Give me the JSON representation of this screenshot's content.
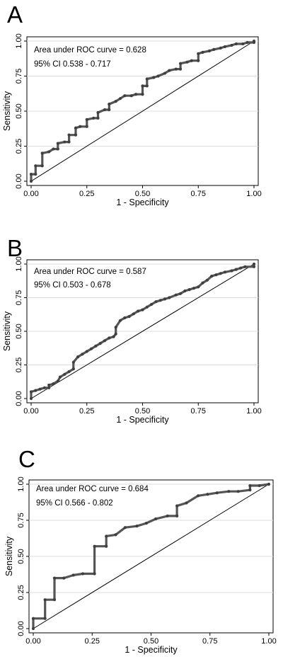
{
  "colors": {
    "grid": "#dedede",
    "axis": "#000000",
    "curve": "#555555",
    "marker": "#3f3f3f",
    "reference": "#000000"
  },
  "chart_data": [
    {
      "panel": "A",
      "type": "line",
      "xlabel": "1 - Specificity",
      "ylabel": "Sensitivity",
      "xlim": [
        0,
        1
      ],
      "ylim": [
        0,
        1
      ],
      "xticks": [
        "0.00",
        "0.25",
        "0.50",
        "0.75",
        "1.00"
      ],
      "yticks": [
        "0.00",
        "0.25",
        "0.50",
        "0.75",
        "1.00"
      ],
      "grid": true,
      "annotations": [
        "Area under ROC curve = 0.628",
        "95% CI  0.538 - 0.717"
      ],
      "reference_line": [
        [
          0,
          0
        ],
        [
          1,
          1
        ]
      ],
      "series": [
        {
          "x": [
            0,
            0,
            0.02,
            0.02,
            0.05,
            0.05,
            0.08,
            0.1,
            0.12,
            0.12,
            0.15,
            0.17,
            0.17,
            0.2,
            0.2,
            0.22,
            0.25,
            0.25,
            0.28,
            0.3,
            0.3,
            0.33,
            0.35,
            0.35,
            0.38,
            0.4,
            0.42,
            0.45,
            0.47,
            0.5,
            0.5,
            0.52,
            0.52,
            0.55,
            0.57,
            0.6,
            0.62,
            0.65,
            0.67,
            0.67,
            0.7,
            0.72,
            0.75,
            0.75,
            0.77,
            0.8,
            0.82,
            0.85,
            0.87,
            0.9,
            0.92,
            0.95,
            0.97,
            1.0,
            1.0
          ],
          "y": [
            0,
            0.05,
            0.05,
            0.11,
            0.11,
            0.2,
            0.21,
            0.23,
            0.23,
            0.27,
            0.28,
            0.28,
            0.33,
            0.33,
            0.38,
            0.39,
            0.39,
            0.44,
            0.45,
            0.45,
            0.49,
            0.51,
            0.51,
            0.55,
            0.57,
            0.59,
            0.61,
            0.61,
            0.62,
            0.62,
            0.68,
            0.68,
            0.73,
            0.74,
            0.75,
            0.77,
            0.79,
            0.8,
            0.8,
            0.84,
            0.85,
            0.86,
            0.86,
            0.91,
            0.92,
            0.93,
            0.94,
            0.95,
            0.96,
            0.97,
            0.98,
            0.98,
            0.99,
            0.99,
            1.0
          ]
        }
      ]
    },
    {
      "panel": "B",
      "type": "line",
      "xlabel": "1 - Specificity",
      "ylabel": "Sensitivity",
      "xlim": [
        0,
        1
      ],
      "ylim": [
        0,
        1
      ],
      "xticks": [
        "0.00",
        "0.25",
        "0.50",
        "0.75",
        "1.00"
      ],
      "yticks": [
        "0.00",
        "0.25",
        "0.50",
        "0.75",
        "1.00"
      ],
      "grid": true,
      "annotations": [
        "Area under ROC curve = 0.587",
        "95% CI  0.503 - 0.678"
      ],
      "reference_line": [
        [
          0,
          0
        ],
        [
          1,
          1
        ]
      ],
      "series": [
        {
          "x": [
            0,
            0,
            0.02,
            0.04,
            0.06,
            0.08,
            0.08,
            0.1,
            0.12,
            0.13,
            0.15,
            0.17,
            0.19,
            0.19,
            0.21,
            0.23,
            0.25,
            0.27,
            0.29,
            0.31,
            0.33,
            0.35,
            0.37,
            0.38,
            0.38,
            0.4,
            0.42,
            0.44,
            0.46,
            0.48,
            0.5,
            0.52,
            0.54,
            0.56,
            0.58,
            0.6,
            0.62,
            0.65,
            0.67,
            0.69,
            0.71,
            0.73,
            0.75,
            0.77,
            0.79,
            0.81,
            0.83,
            0.85,
            0.87,
            0.9,
            0.92,
            0.94,
            0.96,
            1.0,
            1.0
          ],
          "y": [
            0,
            0.05,
            0.06,
            0.07,
            0.08,
            0.08,
            0.1,
            0.11,
            0.13,
            0.16,
            0.18,
            0.2,
            0.22,
            0.27,
            0.31,
            0.33,
            0.35,
            0.37,
            0.39,
            0.41,
            0.43,
            0.45,
            0.46,
            0.48,
            0.53,
            0.58,
            0.6,
            0.61,
            0.63,
            0.65,
            0.66,
            0.68,
            0.7,
            0.72,
            0.73,
            0.74,
            0.75,
            0.77,
            0.78,
            0.8,
            0.81,
            0.82,
            0.83,
            0.86,
            0.88,
            0.91,
            0.92,
            0.93,
            0.94,
            0.95,
            0.96,
            0.97,
            0.98,
            0.98,
            1.0
          ]
        }
      ]
    },
    {
      "panel": "C",
      "type": "line",
      "xlabel": "1 - Specificity",
      "ylabel": "Sensitivity",
      "xlim": [
        0,
        1
      ],
      "ylim": [
        0,
        1
      ],
      "xticks": [
        "0.00",
        "0.25",
        "0.50",
        "0.75",
        "1.00"
      ],
      "yticks": [
        "0.00",
        "0.25",
        "0.50",
        "0.75",
        "1.00"
      ],
      "grid": true,
      "annotations": [
        "Area under ROC curve = 0.684",
        "95% CI  0.566 - 0.802"
      ],
      "reference_line": [
        [
          0,
          0
        ],
        [
          1,
          1
        ]
      ],
      "series": [
        {
          "x": [
            0,
            0,
            0.05,
            0.05,
            0.09,
            0.09,
            0.13,
            0.17,
            0.21,
            0.26,
            0.26,
            0.31,
            0.31,
            0.35,
            0.39,
            0.44,
            0.48,
            0.52,
            0.57,
            0.61,
            0.61,
            0.65,
            0.7,
            0.74,
            0.78,
            0.83,
            0.87,
            0.92,
            0.92,
            0.96,
            1.0
          ],
          "y": [
            0,
            0.07,
            0.07,
            0.2,
            0.2,
            0.35,
            0.35,
            0.37,
            0.38,
            0.38,
            0.57,
            0.57,
            0.64,
            0.65,
            0.7,
            0.71,
            0.73,
            0.76,
            0.78,
            0.78,
            0.85,
            0.87,
            0.92,
            0.93,
            0.94,
            0.95,
            0.95,
            0.96,
            0.99,
            0.99,
            1.0
          ]
        }
      ]
    }
  ]
}
